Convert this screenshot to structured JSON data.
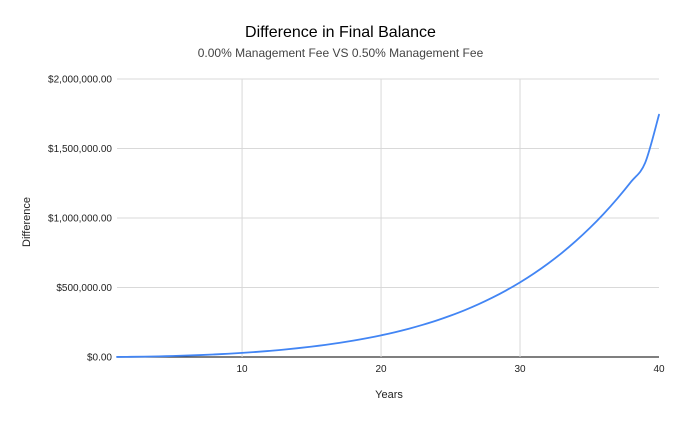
{
  "chart_data": {
    "type": "line",
    "title": "Difference in Final Balance",
    "subtitle": "0.00% Management Fee VS 0.50% Management Fee",
    "xlabel": "Years",
    "ylabel": "Difference",
    "xlim": [
      1,
      40
    ],
    "ylim": [
      0,
      2000000
    ],
    "x_ticks": [
      10,
      20,
      30,
      40
    ],
    "x_tick_labels": [
      "10",
      "20",
      "30",
      "40"
    ],
    "y_ticks": [
      0,
      500000,
      1000000,
      1500000,
      2000000
    ],
    "y_tick_labels": [
      "$0.00",
      "$500,000.00",
      "$1,000,000.00",
      "$1,500,000.00",
      "$2,000,000.00"
    ],
    "grid": true,
    "legend": "none",
    "line_color": "#4285f4",
    "series": [
      {
        "x": [
          1,
          2,
          3,
          4,
          5,
          6,
          7,
          8,
          9,
          10,
          11,
          12,
          13,
          14,
          15,
          16,
          17,
          18,
          19,
          20,
          21,
          22,
          23,
          24,
          25,
          26,
          27,
          28,
          29,
          30,
          31,
          32,
          33,
          34,
          35,
          36,
          37,
          38,
          39,
          40
        ],
        "values": [
          400,
          1300,
          2700,
          4600,
          7100,
          10200,
          13900,
          18300,
          23500,
          29500,
          36400,
          44300,
          53200,
          63300,
          74700,
          87500,
          101900,
          118000,
          136000,
          156000,
          178500,
          203500,
          231500,
          262500,
          297500,
          336000,
          379000,
          426500,
          479000,
          537000,
          601000,
          671000,
          748000,
          833000,
          926000,
          1028000,
          1140000,
          1262000,
          1396000,
          1743000
        ]
      }
    ]
  }
}
